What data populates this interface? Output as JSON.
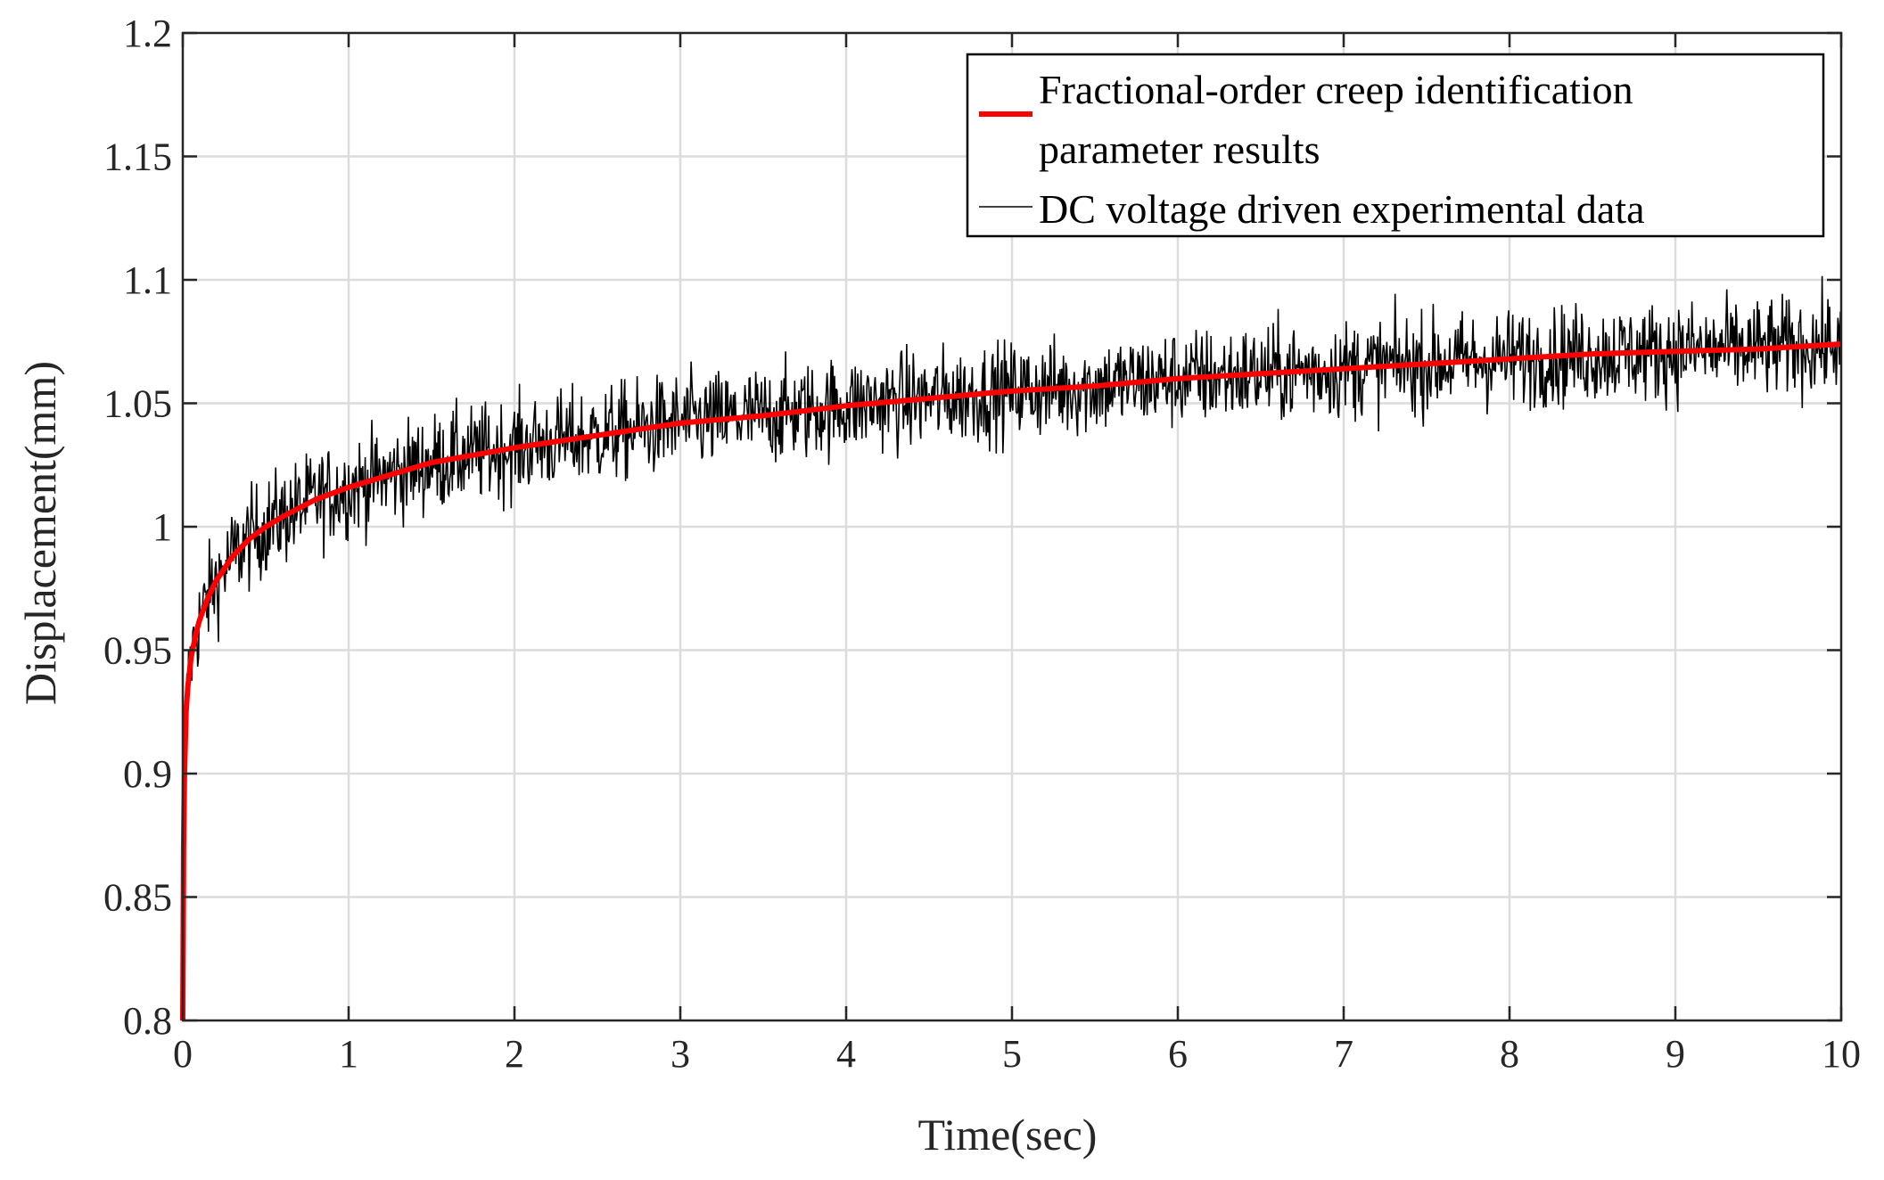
{
  "chart_data": {
    "type": "line",
    "title": "",
    "xlabel": "Time(sec)",
    "ylabel": "Displacement(mm)",
    "xlim": [
      0,
      10
    ],
    "ylim": [
      0.8,
      1.2
    ],
    "xticks": [
      0,
      1,
      2,
      3,
      4,
      5,
      6,
      7,
      8,
      9,
      10
    ],
    "xtick_labels": [
      "0",
      "1",
      "2",
      "3",
      "4",
      "5",
      "6",
      "7",
      "8",
      "9",
      "10"
    ],
    "yticks": [
      0.8,
      0.85,
      0.9,
      0.95,
      1.0,
      1.05,
      1.1,
      1.15,
      1.2
    ],
    "ytick_labels": [
      "0.8",
      "0.85",
      "0.9",
      "0.95",
      "1",
      "1.05",
      "1.1",
      "1.15",
      "1.2"
    ],
    "grid": true,
    "legend_position": "top-right",
    "series": [
      {
        "name": "Fractional-order creep identification parameter results",
        "legend_lines": [
          "Fractional-order creep identification",
          "parameter results"
        ],
        "color": "#ff0000",
        "style": "thick",
        "x": [
          0,
          0.002,
          0.005,
          0.01,
          0.02,
          0.03,
          0.05,
          0.08,
          0.1,
          0.15,
          0.2,
          0.3,
          0.4,
          0.5,
          0.6,
          0.8,
          1.0,
          1.25,
          1.5,
          1.75,
          2.0,
          2.5,
          3.0,
          3.5,
          4.0,
          4.5,
          5.0,
          5.5,
          6.0,
          6.5,
          7.0,
          7.5,
          8.0,
          8.5,
          9.0,
          9.5,
          10.0
        ],
        "values": [
          0.8,
          0.83,
          0.87,
          0.9,
          0.925,
          0.935,
          0.947,
          0.957,
          0.962,
          0.971,
          0.978,
          0.988,
          0.995,
          1.0,
          1.004,
          1.011,
          1.016,
          1.021,
          1.026,
          1.029,
          1.032,
          1.037,
          1.042,
          1.045,
          1.049,
          1.052,
          1.055,
          1.057,
          1.06,
          1.062,
          1.064,
          1.066,
          1.068,
          1.07,
          1.071,
          1.072,
          1.074
        ]
      },
      {
        "name": "DC voltage driven experimental data",
        "legend_lines": [
          "DC voltage driven experimental data"
        ],
        "color": "#000000",
        "style": "thin",
        "noise_amplitude": 0.022,
        "x_start": 0,
        "x_end": 10,
        "samples": 2000,
        "note": "noisy measurements scattered around the fitted creep curve"
      }
    ]
  }
}
